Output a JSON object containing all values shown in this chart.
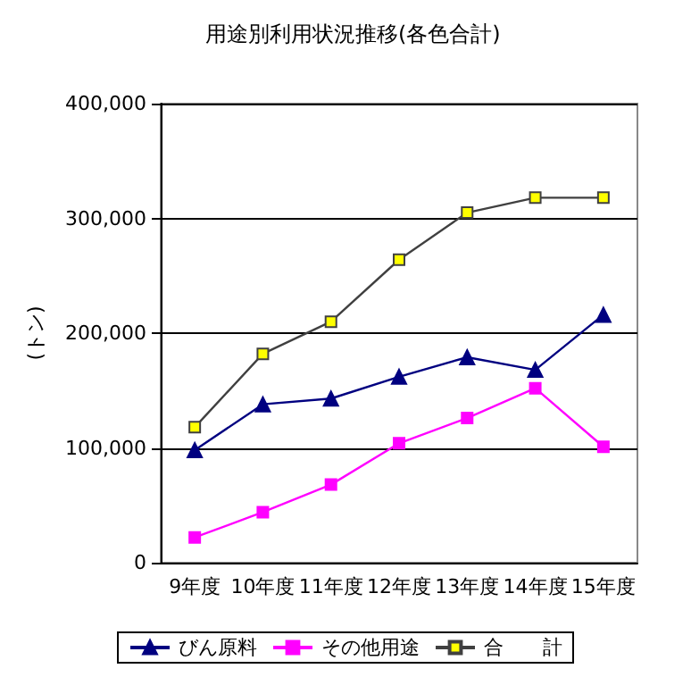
{
  "chart_data": {
    "type": "line",
    "title": "用途別利用状況推移(各色合計)",
    "ylabel": "(トン)",
    "categories": [
      "9年度",
      "10年度",
      "11年度",
      "12年度",
      "13年度",
      "14年度",
      "15年度"
    ],
    "series": [
      {
        "name": "びん原料",
        "color": "#000080",
        "marker": "triangle",
        "values": [
          98000,
          138000,
          143000,
          162000,
          179000,
          168000,
          216000
        ]
      },
      {
        "name": "その他用途",
        "color": "#ff00ff",
        "marker": "square",
        "values": [
          22000,
          44000,
          68000,
          104000,
          126000,
          152000,
          101000
        ]
      },
      {
        "name": "合　　計",
        "color": "#ffff00",
        "marker": "square",
        "values": [
          118000,
          182000,
          210000,
          264000,
          305000,
          318000,
          318000
        ]
      }
    ],
    "ylim": [
      0,
      400000
    ],
    "yticks": [
      0,
      {
        "value": 100000,
        "label": "100,000"
      },
      {
        "value": 200000,
        "label": "200,000"
      },
      {
        "value": 300000,
        "label": "300,000"
      },
      {
        "value": 400000,
        "label": "400,000"
      }
    ],
    "grid": "y",
    "legend": "bottom",
    "line_style": "solid"
  }
}
